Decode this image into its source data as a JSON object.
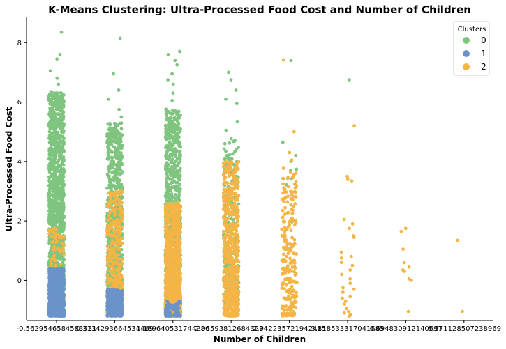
{
  "chart_data": {
    "type": "scatter",
    "title": "K-Means Clustering: Ultra-Processed Food Cost and Number of Children",
    "xlabel": "Number of Children",
    "ylabel": "Ultra-Processed Food Cost",
    "categories": [
      "-0.5629546584583931",
      "0.3134293664534469",
      "1.189640531744286",
      "2.065938126843274",
      "2.942235721942415",
      "3.818533317041585",
      "4.694830912140697",
      "5.571128507238969"
    ],
    "ylim": [
      -1.35,
      8.85
    ],
    "yticks": [
      0,
      2,
      4,
      6,
      8
    ],
    "grid": false,
    "legend": {
      "title": "Clusters",
      "position": "top-right",
      "entries": [
        "0",
        "1",
        "2"
      ]
    },
    "colors": {
      "0": "#7fc47f",
      "1": "#6b93c9",
      "2": "#f4b446"
    },
    "series": [
      {
        "name": "0",
        "bands": [
          {
            "category": 0,
            "min": -1.15,
            "max": 6.35,
            "count": 1400
          },
          {
            "category": 1,
            "min": -1.15,
            "max": 5.3,
            "count": 900
          },
          {
            "category": 2,
            "min": -1.15,
            "max": 5.8,
            "count": 900
          },
          {
            "category": 3,
            "min": -0.8,
            "max": 4.8,
            "count": 260
          },
          {
            "category": 4,
            "min": 0.8,
            "max": 4.6,
            "count": 6
          }
        ],
        "points": [
          {
            "category": 0,
            "y": 8.35
          },
          {
            "category": 0,
            "y": 7.6
          },
          {
            "category": 0,
            "y": 7.45
          },
          {
            "category": 0,
            "y": 7.05
          },
          {
            "category": 0,
            "y": 6.8
          },
          {
            "category": 0,
            "y": 6.6
          },
          {
            "category": 1,
            "y": 8.15
          },
          {
            "category": 1,
            "y": 6.95
          },
          {
            "category": 1,
            "y": 6.4
          },
          {
            "category": 1,
            "y": 6.1
          },
          {
            "category": 1,
            "y": 5.75
          },
          {
            "category": 1,
            "y": 5.5
          },
          {
            "category": 2,
            "y": 7.7
          },
          {
            "category": 2,
            "y": 7.6
          },
          {
            "category": 2,
            "y": 7.4
          },
          {
            "category": 2,
            "y": 7.25
          },
          {
            "category": 2,
            "y": 6.95
          },
          {
            "category": 2,
            "y": 6.75
          },
          {
            "category": 2,
            "y": 6.6
          },
          {
            "category": 2,
            "y": 6.3
          },
          {
            "category": 2,
            "y": 6.05
          },
          {
            "category": 3,
            "y": 7.0
          },
          {
            "category": 3,
            "y": 6.75
          },
          {
            "category": 3,
            "y": 6.4
          },
          {
            "category": 3,
            "y": 6.1
          },
          {
            "category": 3,
            "y": 5.95
          },
          {
            "category": 3,
            "y": 5.35
          },
          {
            "category": 3,
            "y": 5.05
          },
          {
            "category": 4,
            "y": 7.4
          },
          {
            "category": 4,
            "y": 4.65
          },
          {
            "category": 4,
            "y": 4.2
          },
          {
            "category": 5,
            "y": 6.75
          }
        ]
      },
      {
        "name": "1",
        "bands": [
          {
            "category": 0,
            "min": -1.2,
            "max": 0.4,
            "count": 700
          },
          {
            "category": 1,
            "min": -1.2,
            "max": -0.3,
            "count": 350
          },
          {
            "category": 2,
            "min": -1.2,
            "max": -0.7,
            "count": 60
          }
        ],
        "points": []
      },
      {
        "name": "2",
        "bands": [
          {
            "category": 0,
            "min": -0.9,
            "max": 1.8,
            "count": 120
          },
          {
            "category": 1,
            "min": -1.1,
            "max": 3.0,
            "count": 350
          },
          {
            "category": 2,
            "min": -1.2,
            "max": 2.6,
            "count": 900
          },
          {
            "category": 3,
            "min": -1.2,
            "max": 4.0,
            "count": 650
          },
          {
            "category": 4,
            "min": -1.2,
            "max": 3.8,
            "count": 230
          }
        ],
        "points": [
          {
            "category": 4,
            "y": 7.42
          },
          {
            "category": 4,
            "y": 5.0
          },
          {
            "category": 4,
            "y": 4.3
          },
          {
            "category": 4,
            "y": 4.05
          },
          {
            "category": 5,
            "y": 5.2
          },
          {
            "category": 5,
            "y": 3.5
          },
          {
            "category": 5,
            "y": 3.4
          },
          {
            "category": 5,
            "y": 3.35
          },
          {
            "category": 5,
            "y": 2.05
          },
          {
            "category": 5,
            "y": 1.9
          },
          {
            "category": 5,
            "y": 1.75
          },
          {
            "category": 5,
            "y": 1.5
          },
          {
            "category": 5,
            "y": 1.45
          },
          {
            "category": 5,
            "y": 0.95
          },
          {
            "category": 5,
            "y": 0.8
          },
          {
            "category": 5,
            "y": 0.75
          },
          {
            "category": 5,
            "y": 0.6
          },
          {
            "category": 5,
            "y": 0.5
          },
          {
            "category": 5,
            "y": 0.35
          },
          {
            "category": 5,
            "y": 0.2
          },
          {
            "category": 5,
            "y": 0.05
          },
          {
            "category": 5,
            "y": -0.1
          },
          {
            "category": 5,
            "y": -0.25
          },
          {
            "category": 5,
            "y": -0.3
          },
          {
            "category": 5,
            "y": -0.4
          },
          {
            "category": 5,
            "y": -0.55
          },
          {
            "category": 5,
            "y": -0.6
          },
          {
            "category": 5,
            "y": -0.7
          },
          {
            "category": 5,
            "y": -0.8
          },
          {
            "category": 5,
            "y": -0.95
          },
          {
            "category": 5,
            "y": -1.05
          },
          {
            "category": 5,
            "y": -1.1
          },
          {
            "category": 5,
            "y": -1.15
          },
          {
            "category": 5,
            "y": -1.2
          },
          {
            "category": 6,
            "y": 1.75
          },
          {
            "category": 6,
            "y": 1.65
          },
          {
            "category": 6,
            "y": 1.05
          },
          {
            "category": 6,
            "y": 0.6
          },
          {
            "category": 6,
            "y": 0.45
          },
          {
            "category": 6,
            "y": 0.35
          },
          {
            "category": 6,
            "y": 0.3
          },
          {
            "category": 6,
            "y": 0.05
          },
          {
            "category": 6,
            "y": 0.0
          },
          {
            "category": 6,
            "y": -1.05
          },
          {
            "category": 7,
            "y": 1.35
          },
          {
            "category": 7,
            "y": -1.05
          }
        ]
      }
    ]
  }
}
